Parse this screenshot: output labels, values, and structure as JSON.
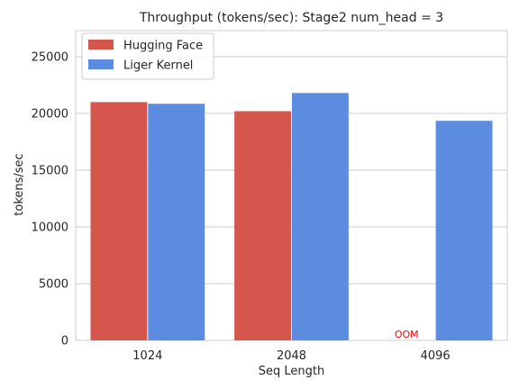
{
  "chart_data": {
    "type": "bar",
    "title": "Throughput (tokens/sec): Stage2 num_head = 3",
    "xlabel": "Seq Length",
    "ylabel": "tokens/sec",
    "categories": [
      "1024",
      "2048",
      "4096"
    ],
    "series": [
      {
        "name": "Hugging Face",
        "color": "#d5564c",
        "values": [
          21000,
          20200,
          null
        ]
      },
      {
        "name": "Liger Kernel",
        "color": "#5b8ce0",
        "values": [
          20850,
          21800,
          19350
        ]
      }
    ],
    "yticks": [
      0,
      5000,
      10000,
      15000,
      20000,
      25000
    ],
    "ylim": [
      0,
      27300
    ],
    "grid": "y",
    "legend_position": "top-left",
    "annotations": [
      {
        "text": "OOM",
        "category": "4096",
        "series": "Hugging Face",
        "color": "#ff0000"
      }
    ]
  }
}
